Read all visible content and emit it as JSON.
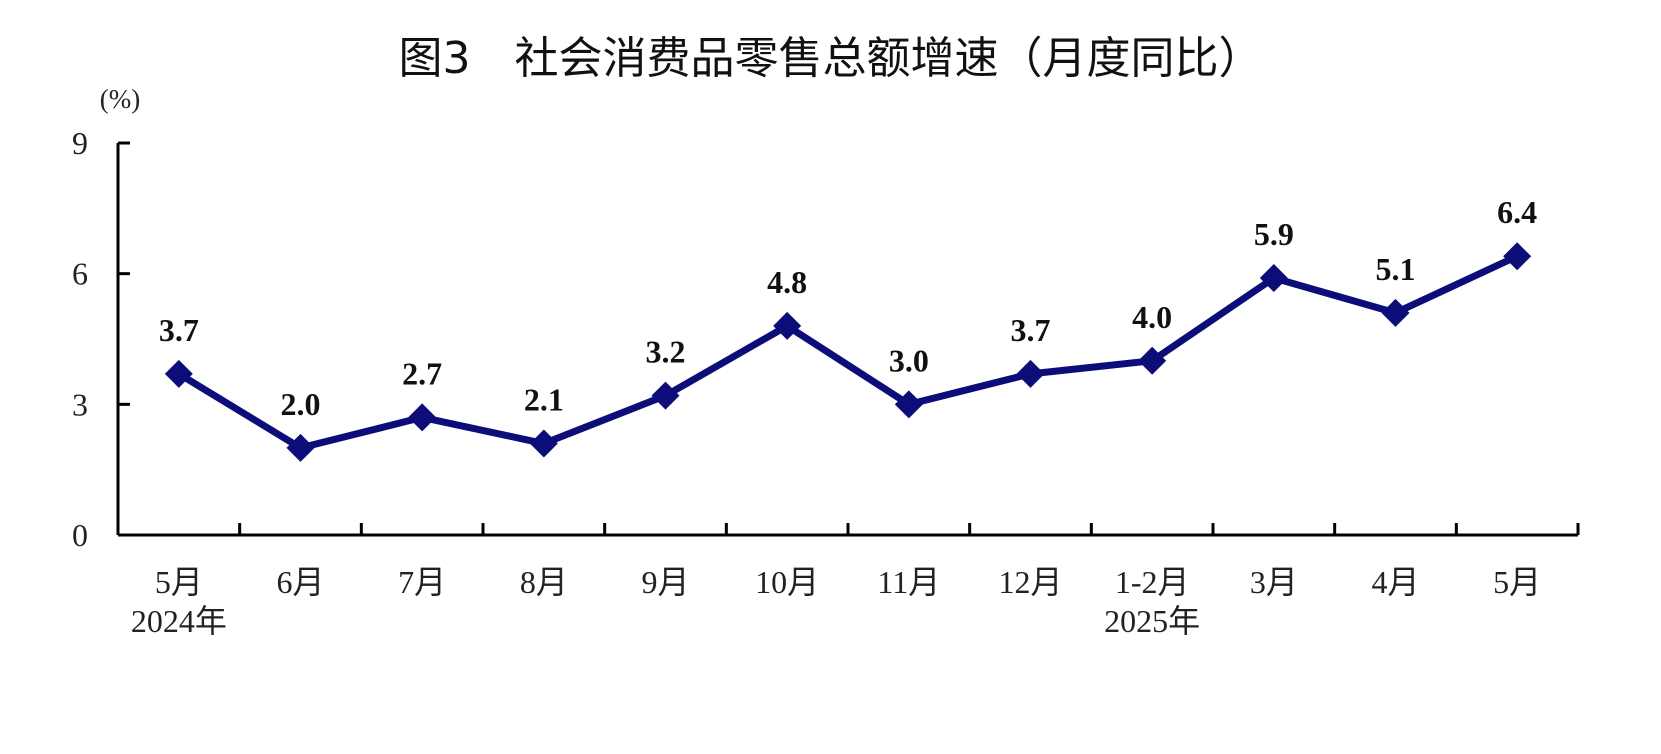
{
  "chart_data": {
    "type": "line",
    "title": "图3　社会消费品零售总额增速（月度同比）",
    "unit_label": "(%)",
    "categories": [
      "5月",
      "6月",
      "7月",
      "8月",
      "9月",
      "10月",
      "11月",
      "12月",
      "1-2月",
      "3月",
      "4月",
      "5月"
    ],
    "year_labels": [
      {
        "index": 0,
        "text": "2024年"
      },
      {
        "index": 8,
        "text": "2025年"
      }
    ],
    "series": [
      {
        "values": [
          3.7,
          2.0,
          2.7,
          2.1,
          3.2,
          4.8,
          3.0,
          3.7,
          4.0,
          5.9,
          5.1,
          6.4
        ]
      }
    ],
    "data_labels": [
      "3.7",
      "2.0",
      "2.7",
      "2.1",
      "3.2",
      "4.8",
      "3.0",
      "3.7",
      "4.0",
      "5.9",
      "5.1",
      "6.4"
    ],
    "y_ticks": [
      "0",
      "3",
      "6",
      "9"
    ],
    "ylim": [
      0,
      9
    ],
    "grid": false,
    "legend": "none",
    "colors": {
      "line": "#0d0d7a",
      "axis": "#000000"
    }
  }
}
